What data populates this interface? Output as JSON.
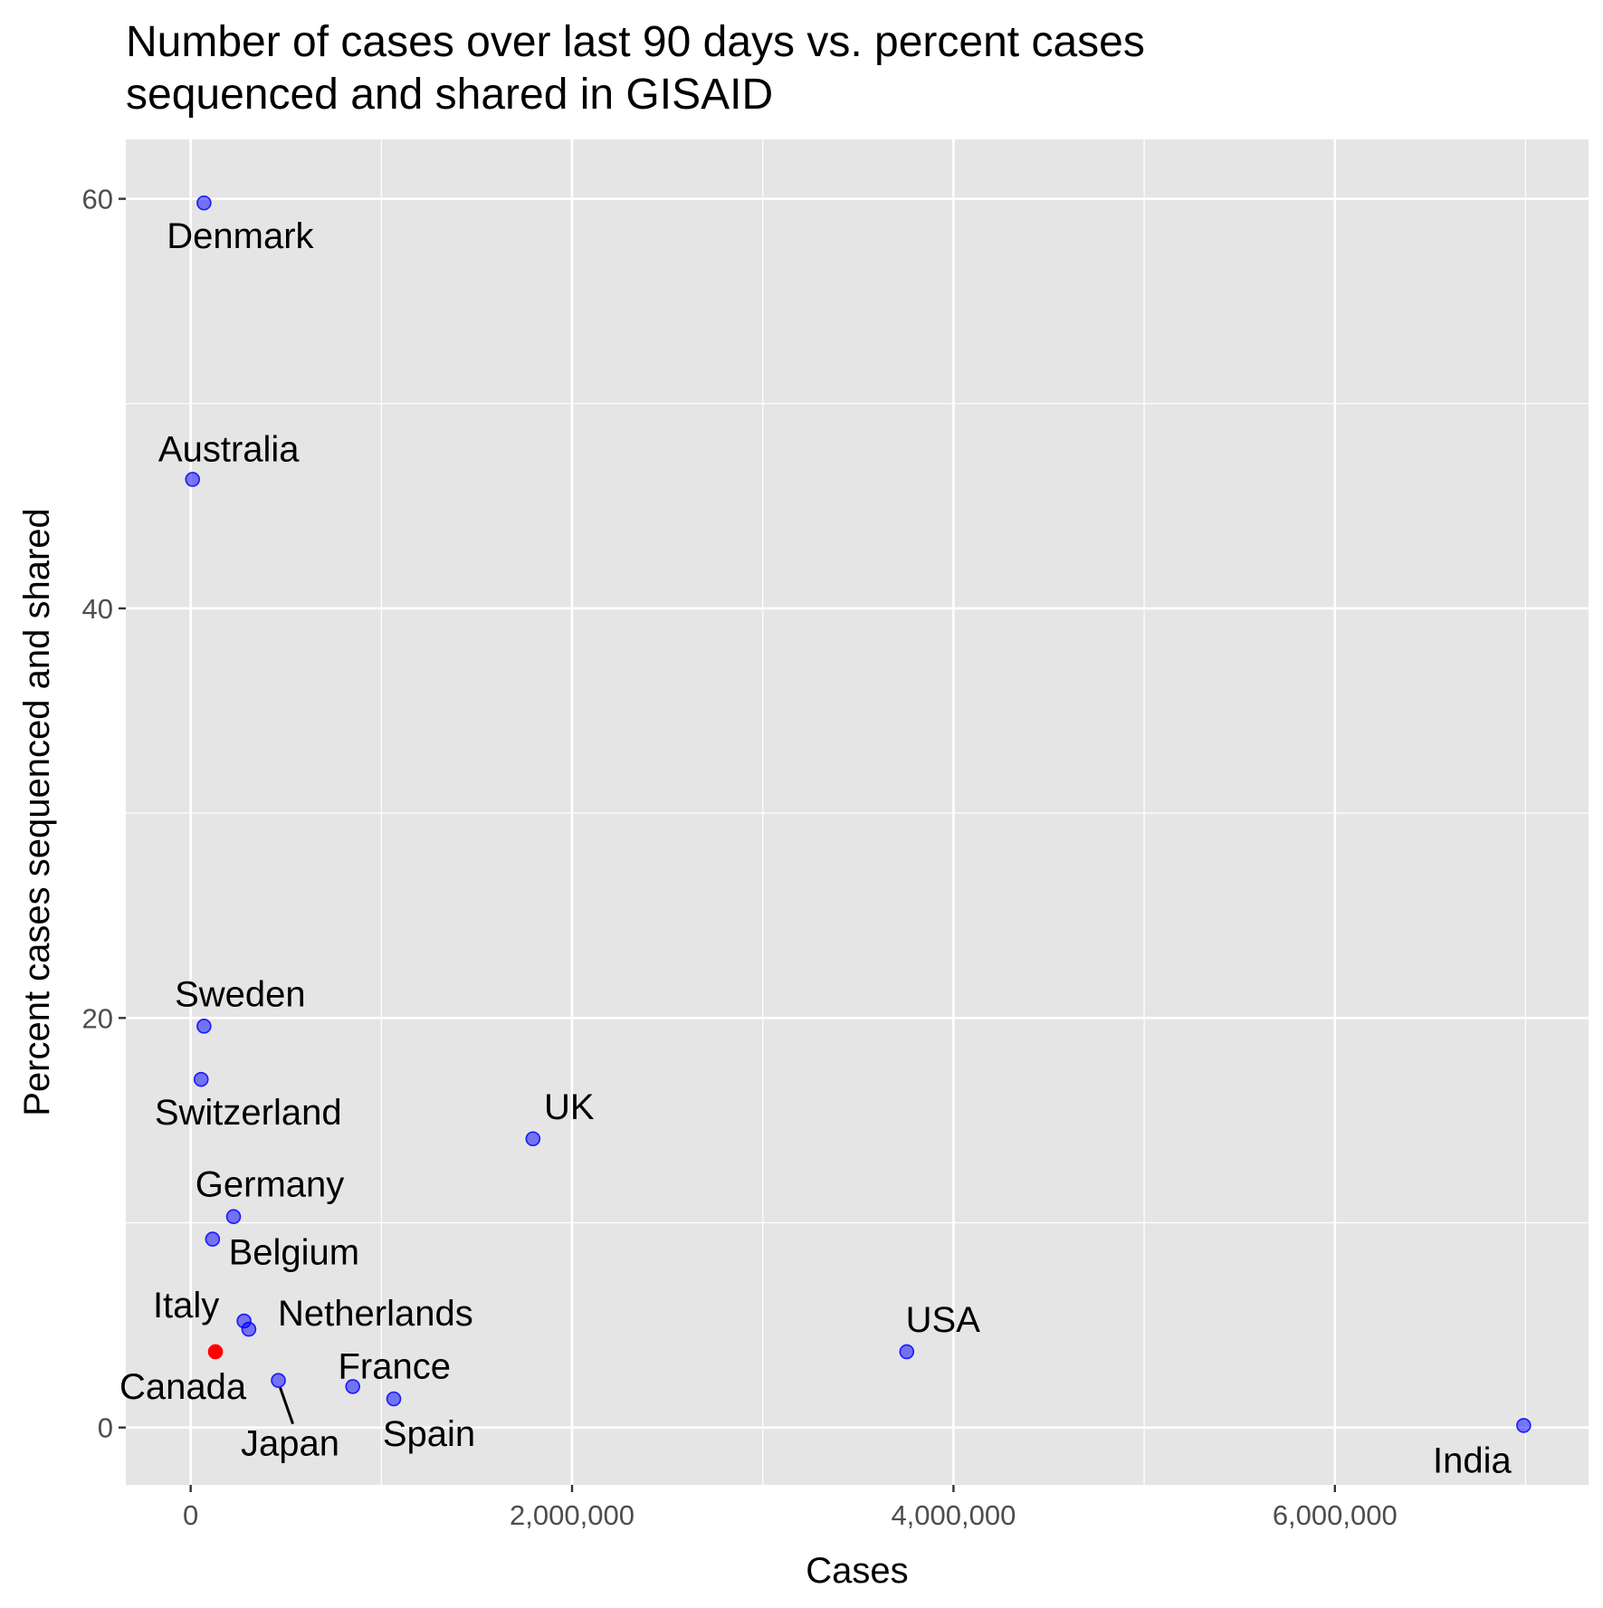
{
  "chart_data": {
    "type": "scatter",
    "title": "Number of cases over last 90 days vs. percent cases sequenced and shared in GISAID",
    "title_lines": [
      "Number of cases over last 90 days vs. percent cases",
      "sequenced and shared in GISAID"
    ],
    "xlabel": "Cases",
    "ylabel": "Percent cases sequenced and shared",
    "xlim": [
      -340000,
      7330000
    ],
    "ylim": [
      -2.8,
      62.9
    ],
    "x_ticks": [
      0,
      2000000,
      4000000,
      6000000
    ],
    "x_tick_labels": [
      "0",
      "2,000,000",
      "4,000,000",
      "6,000,000"
    ],
    "y_ticks": [
      0,
      20,
      40,
      60
    ],
    "y_tick_labels": [
      "0",
      "20",
      "40",
      "60"
    ],
    "grid": true,
    "point_colors": {
      "default": "#0000ff",
      "highlight": "#ff0000"
    },
    "points": [
      {
        "label": "Denmark",
        "x": 70000,
        "y": 59.8,
        "highlight": false
      },
      {
        "label": "Australia",
        "x": 10000,
        "y": 46.3,
        "highlight": false
      },
      {
        "label": "Sweden",
        "x": 70000,
        "y": 19.6,
        "highlight": false
      },
      {
        "label": "Switzerland",
        "x": 55000,
        "y": 17.0,
        "highlight": false
      },
      {
        "label": "UK",
        "x": 1795000,
        "y": 14.1,
        "highlight": false
      },
      {
        "label": "Germany",
        "x": 225000,
        "y": 10.3,
        "highlight": false
      },
      {
        "label": "Belgium",
        "x": 115000,
        "y": 9.2,
        "highlight": false
      },
      {
        "label": "Italy",
        "x": 280000,
        "y": 5.2,
        "highlight": false
      },
      {
        "label": "Netherlands",
        "x": 305000,
        "y": 4.8,
        "highlight": false
      },
      {
        "label": "Canada",
        "x": 130000,
        "y": 3.7,
        "highlight": true
      },
      {
        "label": "USA",
        "x": 3755000,
        "y": 3.7,
        "highlight": false
      },
      {
        "label": "Japan",
        "x": 460000,
        "y": 2.3,
        "highlight": false
      },
      {
        "label": "France",
        "x": 850000,
        "y": 2.0,
        "highlight": false
      },
      {
        "label": "Spain",
        "x": 1065000,
        "y": 1.4,
        "highlight": false
      },
      {
        "label": "India",
        "x": 6990000,
        "y": 0.1,
        "highlight": false
      }
    ]
  }
}
